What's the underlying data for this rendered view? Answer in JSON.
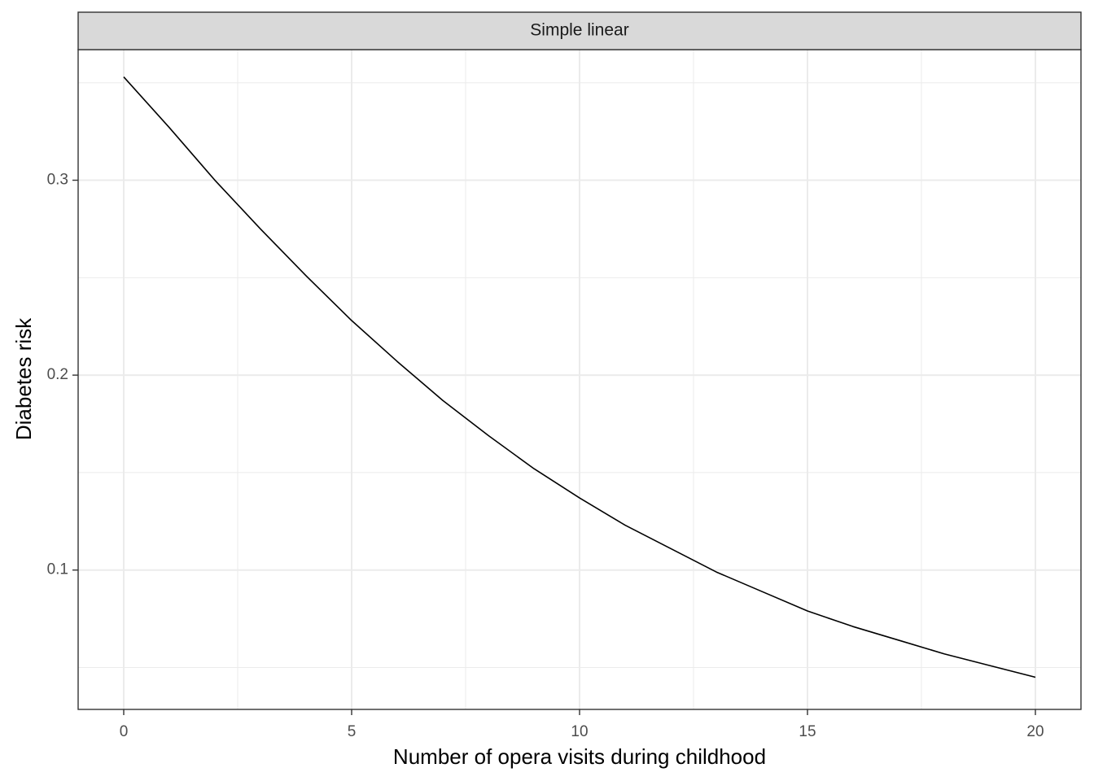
{
  "chart_data": {
    "type": "line",
    "facet_label": "Simple linear",
    "xlabel": "Number of opera visits during childhood",
    "ylabel": "Diabetes risk",
    "xlim": [
      -1,
      21
    ],
    "ylim": [
      0.0285,
      0.367
    ],
    "x_ticks": [
      0,
      5,
      10,
      15,
      20
    ],
    "y_ticks": [
      0.1,
      0.2,
      0.3
    ],
    "x_minor": [
      2.5,
      7.5,
      12.5,
      17.5
    ],
    "y_minor": [
      0.05,
      0.15,
      0.25,
      0.35
    ],
    "grid": true,
    "series": [
      {
        "color": "#000000",
        "x": [
          0,
          1,
          2,
          3,
          4,
          5,
          6,
          7,
          8,
          9,
          10,
          11,
          12,
          13,
          14,
          15,
          16,
          17,
          18,
          19,
          20
        ],
        "y": [
          0.353,
          0.327,
          0.3,
          0.275,
          0.251,
          0.228,
          0.207,
          0.187,
          0.169,
          0.152,
          0.137,
          0.123,
          0.111,
          0.099,
          0.089,
          0.079,
          0.071,
          0.064,
          0.057,
          0.051,
          0.045
        ]
      }
    ]
  }
}
